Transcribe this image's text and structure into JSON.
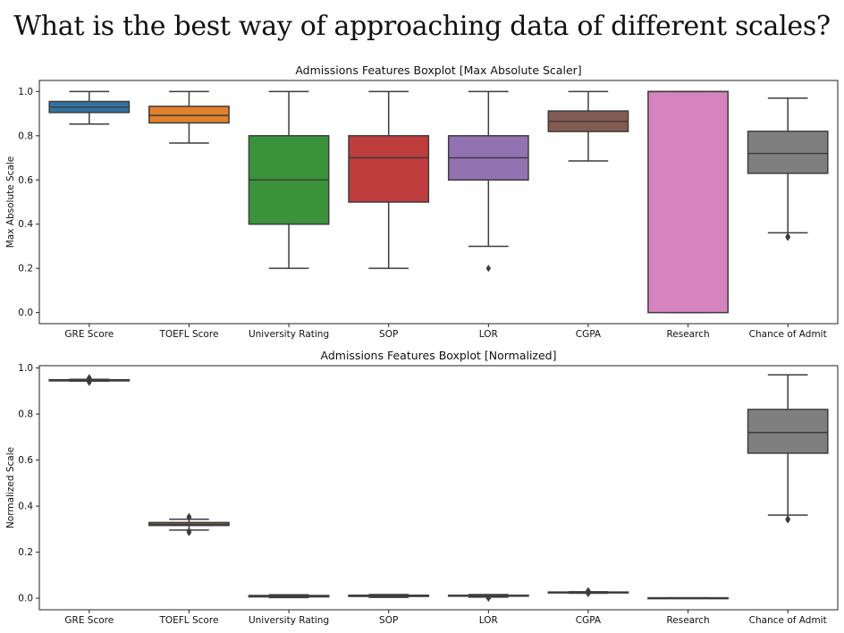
{
  "page_title": "What is the best way of approaching data of different scales?",
  "chart_data": [
    {
      "type": "boxplot",
      "title": "Admissions Features Boxplot [Max Absolute Scaler]",
      "xlabel": "",
      "ylabel": "Max Absolute Scale",
      "ylim": [
        -0.05,
        1.05
      ],
      "yticks": [
        0.0,
        0.2,
        0.4,
        0.6,
        0.8,
        1.0
      ],
      "ytick_labels": [
        "0.0",
        "0.2",
        "0.4",
        "0.6",
        "0.8",
        "1.0"
      ],
      "grid": false,
      "categories": [
        "GRE Score",
        "TOEFL Score",
        "University Rating",
        "SOP",
        "LOR",
        "CGPA",
        "Research",
        "Chance of Admit"
      ],
      "colors": [
        "#3274a1",
        "#e1812c",
        "#3a923a",
        "#c03d3e",
        "#9372b2",
        "#845b53",
        "#d684bd",
        "#7f7f7f"
      ],
      "boxes": [
        {
          "whisker_low": 0.853,
          "q1": 0.905,
          "median": 0.929,
          "q3": 0.955,
          "whisker_high": 1.0,
          "outliers": []
        },
        {
          "whisker_low": 0.767,
          "q1": 0.858,
          "median": 0.892,
          "q3": 0.933,
          "whisker_high": 1.0,
          "outliers": []
        },
        {
          "whisker_low": 0.2,
          "q1": 0.4,
          "median": 0.6,
          "q3": 0.8,
          "whisker_high": 1.0,
          "outliers": []
        },
        {
          "whisker_low": 0.2,
          "q1": 0.5,
          "median": 0.7,
          "q3": 0.8,
          "whisker_high": 1.0,
          "outliers": []
        },
        {
          "whisker_low": 0.3,
          "q1": 0.6,
          "median": 0.7,
          "q3": 0.8,
          "whisker_high": 1.0,
          "outliers": [
            0.2
          ]
        },
        {
          "whisker_low": 0.686,
          "q1": 0.819,
          "median": 0.865,
          "q3": 0.912,
          "whisker_high": 1.0,
          "outliers": []
        },
        {
          "whisker_low": 0.0,
          "q1": 0.0,
          "median": 1.0,
          "q3": 1.0,
          "whisker_high": 1.0,
          "outliers": []
        },
        {
          "whisker_low": 0.361,
          "q1": 0.63,
          "median": 0.72,
          "q3": 0.82,
          "whisker_high": 0.97,
          "outliers": [
            0.34,
            0.345
          ]
        }
      ]
    },
    {
      "type": "boxplot",
      "title": "Admissions Features Boxplot [Normalized]",
      "xlabel": "",
      "ylabel": "Normalized Scale",
      "ylim": [
        -0.05,
        1.01
      ],
      "yticks": [
        0.0,
        0.2,
        0.4,
        0.6,
        0.8,
        1.0
      ],
      "ytick_labels": [
        "0.0",
        "0.2",
        "0.4",
        "0.6",
        "0.8",
        "1.0"
      ],
      "grid": false,
      "categories": [
        "GRE Score",
        "TOEFL Score",
        "University Rating",
        "SOP",
        "LOR",
        "CGPA",
        "Research",
        "Chance of Admit"
      ],
      "colors": [
        "#3274a1",
        "#e1812c",
        "#3a923a",
        "#c03d3e",
        "#9372b2",
        "#845b53",
        "#d684bd",
        "#7f7f7f"
      ],
      "boxes": [
        {
          "whisker_low": 0.943,
          "q1": 0.944,
          "median": 0.946,
          "q3": 0.949,
          "whisker_high": 0.951,
          "outliers": [
            0.937,
            0.955,
            0.958
          ]
        },
        {
          "whisker_low": 0.296,
          "q1": 0.316,
          "median": 0.322,
          "q3": 0.329,
          "whisker_high": 0.343,
          "outliers": [
            0.285,
            0.292,
            0.35,
            0.355
          ]
        },
        {
          "whisker_low": 0.003,
          "q1": 0.006,
          "median": 0.009,
          "q3": 0.012,
          "whisker_high": 0.015,
          "outliers": []
        },
        {
          "whisker_low": 0.004,
          "q1": 0.008,
          "median": 0.01,
          "q3": 0.013,
          "whisker_high": 0.016,
          "outliers": []
        },
        {
          "whisker_low": 0.005,
          "q1": 0.009,
          "median": 0.011,
          "q3": 0.013,
          "whisker_high": 0.016,
          "outliers": [
            0.0
          ]
        },
        {
          "whisker_low": 0.022,
          "q1": 0.024,
          "median": 0.026,
          "q3": 0.027,
          "whisker_high": 0.028,
          "outliers": [
            0.02,
            0.031,
            0.033
          ]
        },
        {
          "whisker_low": 0.0,
          "q1": 0.0,
          "median": 0.001,
          "q3": 0.002,
          "whisker_high": 0.002,
          "outliers": []
        },
        {
          "whisker_low": 0.361,
          "q1": 0.63,
          "median": 0.72,
          "q3": 0.82,
          "whisker_high": 0.97,
          "outliers": [
            0.34,
            0.345
          ]
        }
      ]
    }
  ]
}
